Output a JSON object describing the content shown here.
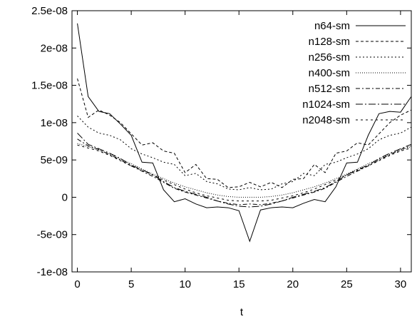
{
  "chart_data": {
    "type": "line",
    "title": "",
    "xlabel": "t",
    "ylabel": "",
    "xlim": [
      -0.5,
      31
    ],
    "ylim": [
      -1e-08,
      2.5e-08
    ],
    "x_ticks": [
      0,
      5,
      10,
      15,
      20,
      25,
      30
    ],
    "x_tick_labels": [
      "0",
      "5",
      "10",
      "15",
      "20",
      "25",
      "30"
    ],
    "y_ticks": [
      -1e-08,
      -5e-09,
      0,
      5e-09,
      1e-08,
      1.5e-08,
      2e-08,
      2.5e-08
    ],
    "y_tick_labels": [
      "-1e-08",
      "-5e-09",
      "0",
      "5e-09",
      "1e-08",
      "1.5e-08",
      "2e-08",
      "2.5e-08"
    ],
    "grid": false,
    "legend_position": "top-right",
    "x": [
      0,
      1,
      2,
      3,
      4,
      5,
      6,
      7,
      8,
      9,
      10,
      11,
      12,
      13,
      14,
      15,
      16,
      17,
      18,
      19,
      20,
      21,
      22,
      23,
      24,
      25,
      26,
      27,
      28,
      29,
      30,
      31
    ],
    "series": [
      {
        "name": "n64-sm",
        "dash": "",
        "values": [
          2.33e-08,
          1.35e-08,
          1.15e-08,
          1.12e-08,
          9.8e-09,
          8.3e-09,
          4.7e-09,
          4.6e-09,
          1e-09,
          -6e-10,
          -2e-10,
          -9e-10,
          -1.4e-09,
          -1.3e-09,
          -1.4e-09,
          -1.8e-09,
          -5.9e-09,
          -1.7e-09,
          -1.4e-09,
          -1.3e-09,
          -1.4e-09,
          -8e-10,
          -3e-10,
          -6e-10,
          1.4e-09,
          4.6e-09,
          4.7e-09,
          8.3e-09,
          1.12e-08,
          1.15e-08,
          1.14e-08,
          1.35e-08
        ]
      },
      {
        "name": "n128-sm",
        "dash": "4,3",
        "values": [
          1.59e-08,
          1.07e-08,
          1.17e-08,
          1.1e-08,
          1e-08,
          8.5e-09,
          7e-09,
          7.3e-09,
          6.2e-09,
          5.9e-09,
          3.3e-09,
          4.4e-09,
          2.5e-09,
          2.4e-09,
          1.3e-09,
          1.4e-09,
          2e-09,
          1.4e-09,
          2e-09,
          1.3e-09,
          2.4e-09,
          2.5e-09,
          4.4e-09,
          3.3e-09,
          5.9e-09,
          6.2e-09,
          7.3e-09,
          7e-09,
          8.5e-09,
          1e-08,
          1.1e-08,
          1.17e-08
        ]
      },
      {
        "name": "n256-sm",
        "dash": "2,3",
        "values": [
          1.09e-08,
          9.4e-09,
          8.6e-09,
          8.3e-09,
          7.7e-09,
          6.5e-09,
          5.8e-09,
          5.3e-09,
          4.7e-09,
          4.4e-09,
          2.9e-09,
          3.2e-09,
          2.1e-09,
          1.8e-09,
          1.1e-09,
          1e-09,
          1.3e-09,
          1e-09,
          1.1e-09,
          1.8e-09,
          2.1e-09,
          3.2e-09,
          2.9e-09,
          4.4e-09,
          4.7e-09,
          5.3e-09,
          5.8e-09,
          6.5e-09,
          7.7e-09,
          8.3e-09,
          8.6e-09,
          9.4e-09
        ]
      },
      {
        "name": "n400-sm",
        "dash": "1,2",
        "values": [
          7.2e-09,
          6.8e-09,
          6.3e-09,
          5.8e-09,
          5.1e-09,
          4.5e-09,
          3.8e-09,
          3.1e-09,
          2.5e-09,
          1.9e-09,
          1.4e-09,
          1e-09,
          6e-10,
          3e-10,
          1e-10,
          0,
          0,
          0,
          1e-10,
          3e-10,
          6e-10,
          1e-09,
          1.4e-09,
          1.9e-09,
          2.5e-09,
          3.1e-09,
          3.8e-09,
          4.5e-09,
          5.1e-09,
          5.8e-09,
          6.3e-09,
          6.8e-09
        ]
      },
      {
        "name": "n512-sm",
        "dash": "6,3,2,3",
        "values": [
          7.8e-09,
          6.9e-09,
          6.4e-09,
          5.7e-09,
          5e-09,
          4.2e-09,
          3.5e-09,
          2.8e-09,
          2e-09,
          1.2e-09,
          7e-10,
          3e-10,
          -1e-10,
          -5e-10,
          -8e-10,
          -1e-09,
          -9e-10,
          -1e-09,
          -8e-10,
          -5e-10,
          -1e-10,
          3e-10,
          7e-10,
          1.2e-09,
          2e-09,
          2.8e-09,
          3.5e-09,
          4.2e-09,
          5e-09,
          5.7e-09,
          6.4e-09,
          6.9e-09
        ]
      },
      {
        "name": "n1024-sm",
        "dash": "10,3,2,3",
        "values": [
          8.6e-09,
          7.1e-09,
          6.5e-09,
          5.9e-09,
          5.2e-09,
          4.3e-09,
          3.7e-09,
          3e-09,
          2.1e-09,
          1.3e-09,
          8e-10,
          4e-10,
          0,
          -5e-10,
          -9e-10,
          -1.2e-09,
          -1.3e-09,
          -1.2e-09,
          -9e-10,
          -5e-10,
          0,
          4e-10,
          8e-10,
          1.3e-09,
          2.1e-09,
          3e-09,
          3.7e-09,
          4.3e-09,
          5.2e-09,
          5.9e-09,
          6.5e-09,
          7.1e-09
        ]
      },
      {
        "name": "n2048-sm",
        "dash": "3,4",
        "values": [
          7e-09,
          6.6e-09,
          6.2e-09,
          5.6e-09,
          4.9e-09,
          4.2e-09,
          3.6e-09,
          3e-09,
          2.3e-09,
          1.7e-09,
          1.1e-09,
          6e-10,
          2e-10,
          -1e-10,
          -4e-10,
          -5e-10,
          -5e-10,
          -5e-10,
          -4e-10,
          -1e-10,
          2e-10,
          6e-10,
          1.1e-09,
          1.7e-09,
          2.3e-09,
          3e-09,
          3.6e-09,
          4.2e-09,
          4.9e-09,
          5.6e-09,
          6.2e-09,
          6.6e-09
        ]
      }
    ]
  }
}
